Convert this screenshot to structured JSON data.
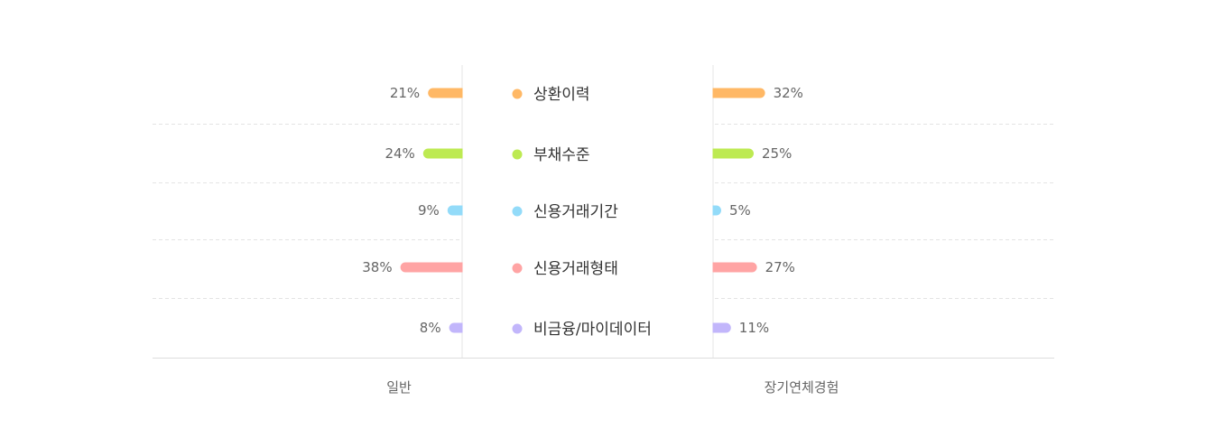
{
  "chart_data": {
    "type": "bar",
    "orientation": "horizontal-butterfly",
    "categories": [
      {
        "label": "상환이력",
        "color": "#FFB865"
      },
      {
        "label": "부채수준",
        "color": "#BDEA52"
      },
      {
        "label": "신용거래기간",
        "color": "#93DBF9"
      },
      {
        "label": "신용거래형태",
        "color": "#FFA4A4"
      },
      {
        "label": "비금융/마이데이터",
        "color": "#C2B6FB"
      }
    ],
    "series": [
      {
        "name": "일반",
        "side": "left",
        "values": [
          21,
          24,
          9,
          38,
          8
        ],
        "labels": [
          "21%",
          "24%",
          "9%",
          "38%",
          "8%"
        ]
      },
      {
        "name": "장기연체경험",
        "side": "right",
        "values": [
          32,
          25,
          5,
          27,
          11
        ],
        "labels": [
          "32%",
          "25%",
          "5%",
          "27%",
          "11%"
        ]
      }
    ],
    "unit": "%",
    "grid": "dashed-horizontal"
  }
}
